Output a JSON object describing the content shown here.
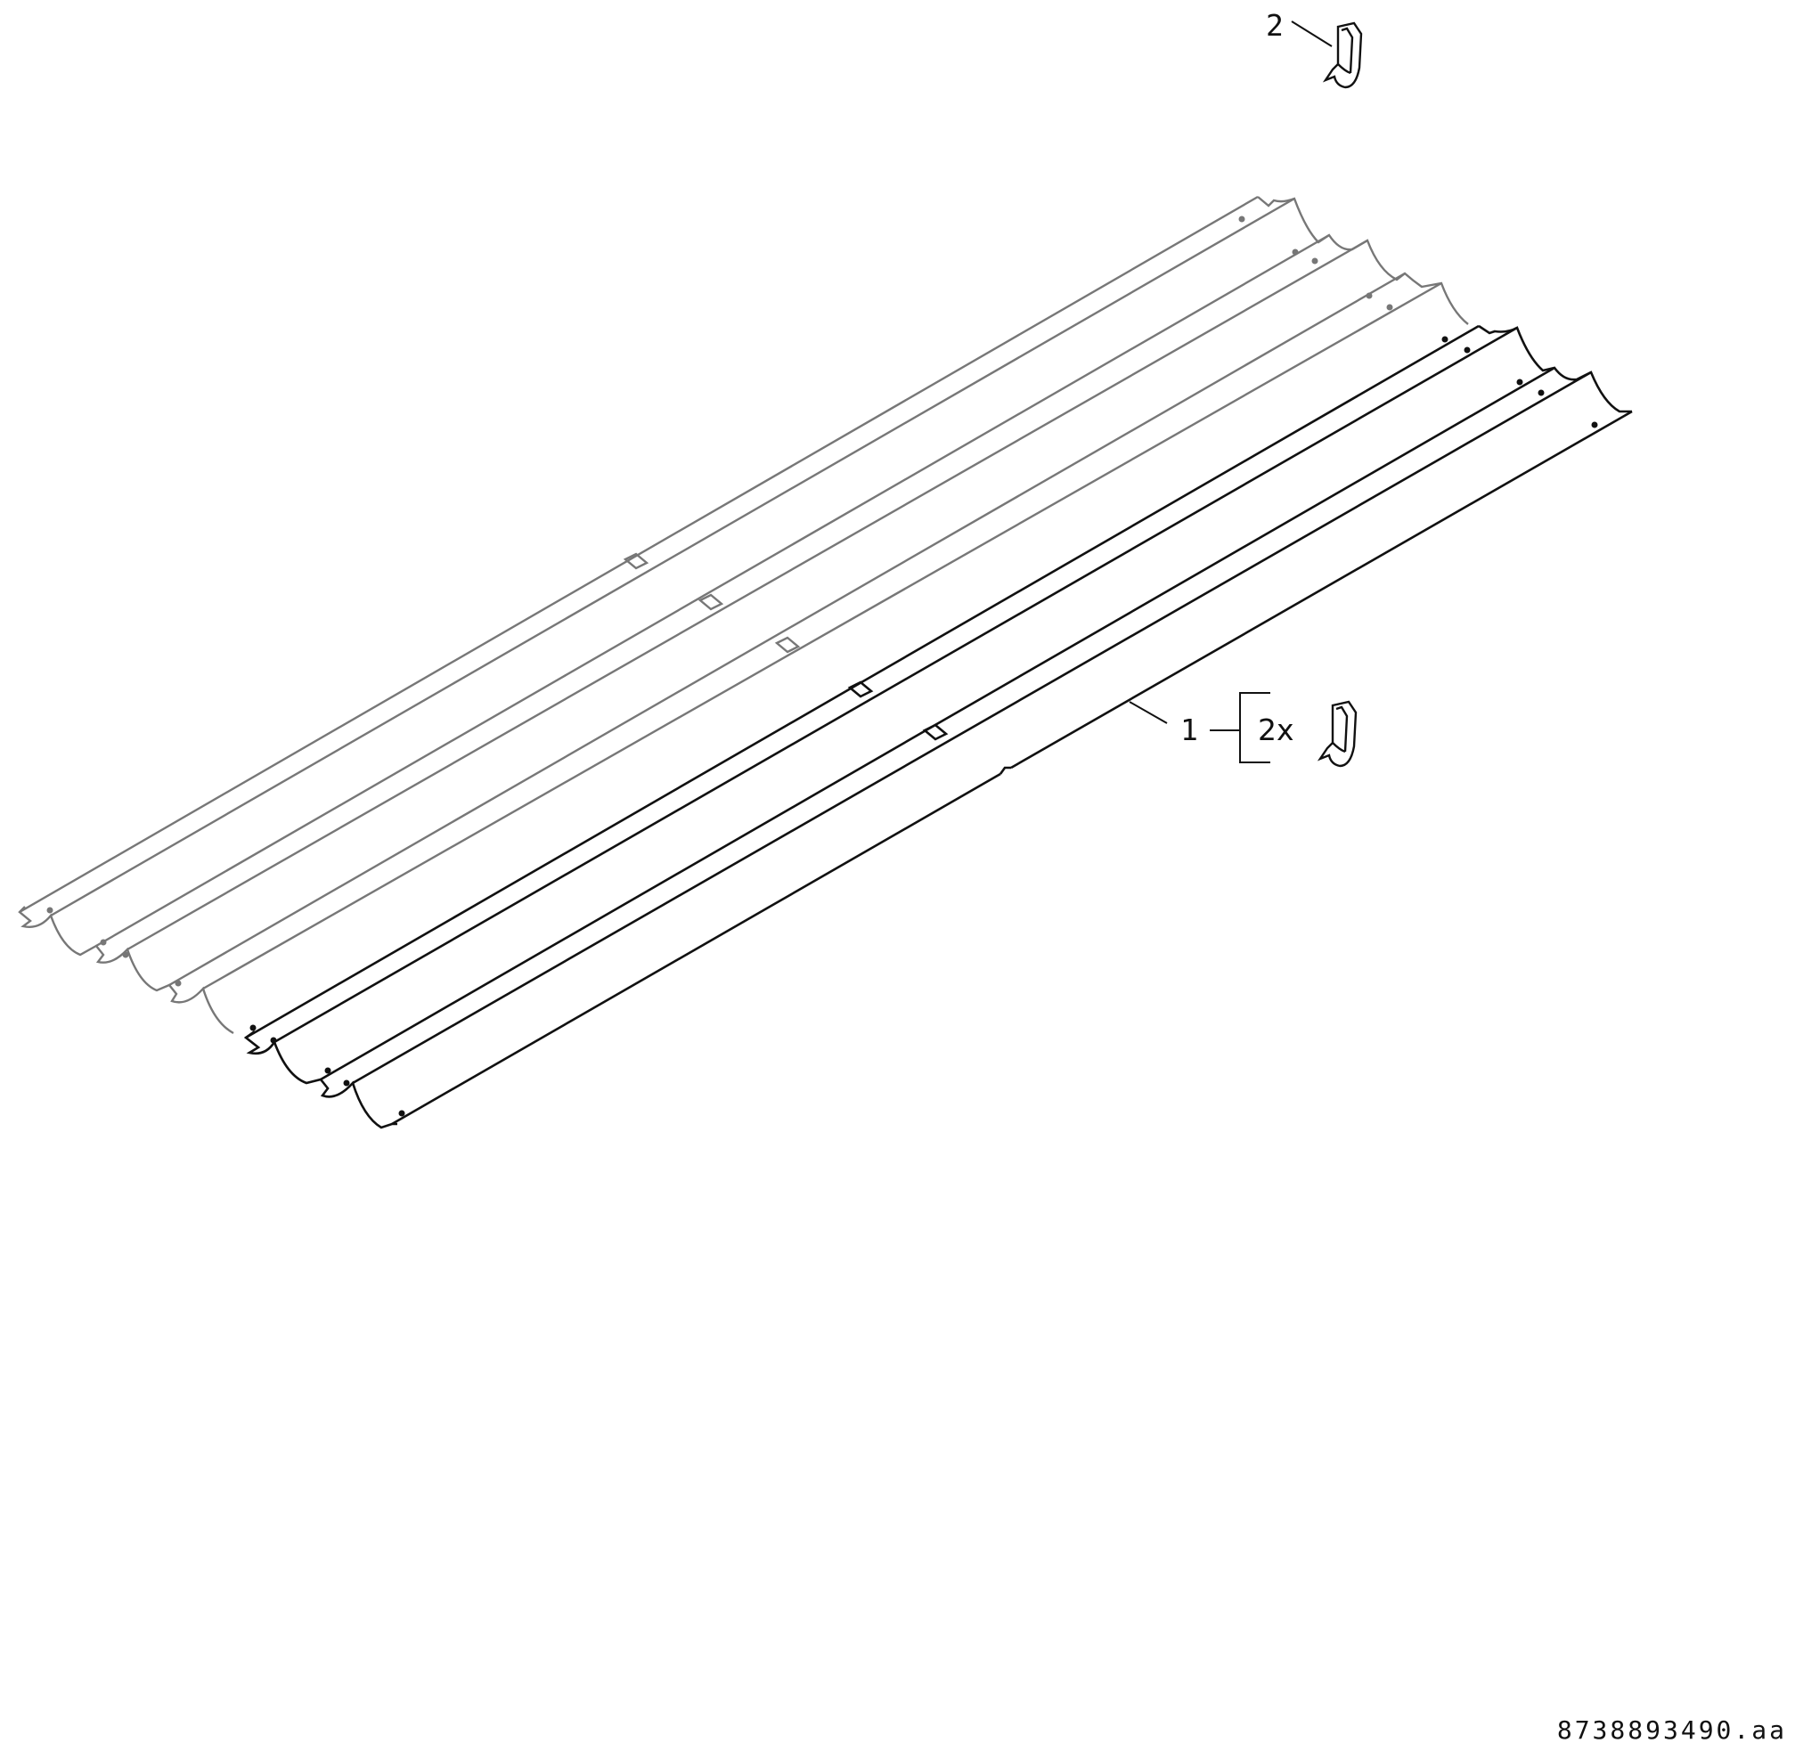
{
  "callouts": {
    "item_1": "1",
    "item_2": "2",
    "quantity": "2x"
  },
  "document_id": "8738893490.aa",
  "colors": {
    "installed_panel": "#777777",
    "highlighted_panel": "#111111",
    "background": "#ffffff"
  },
  "icons": {
    "clip": "clip-icon"
  }
}
